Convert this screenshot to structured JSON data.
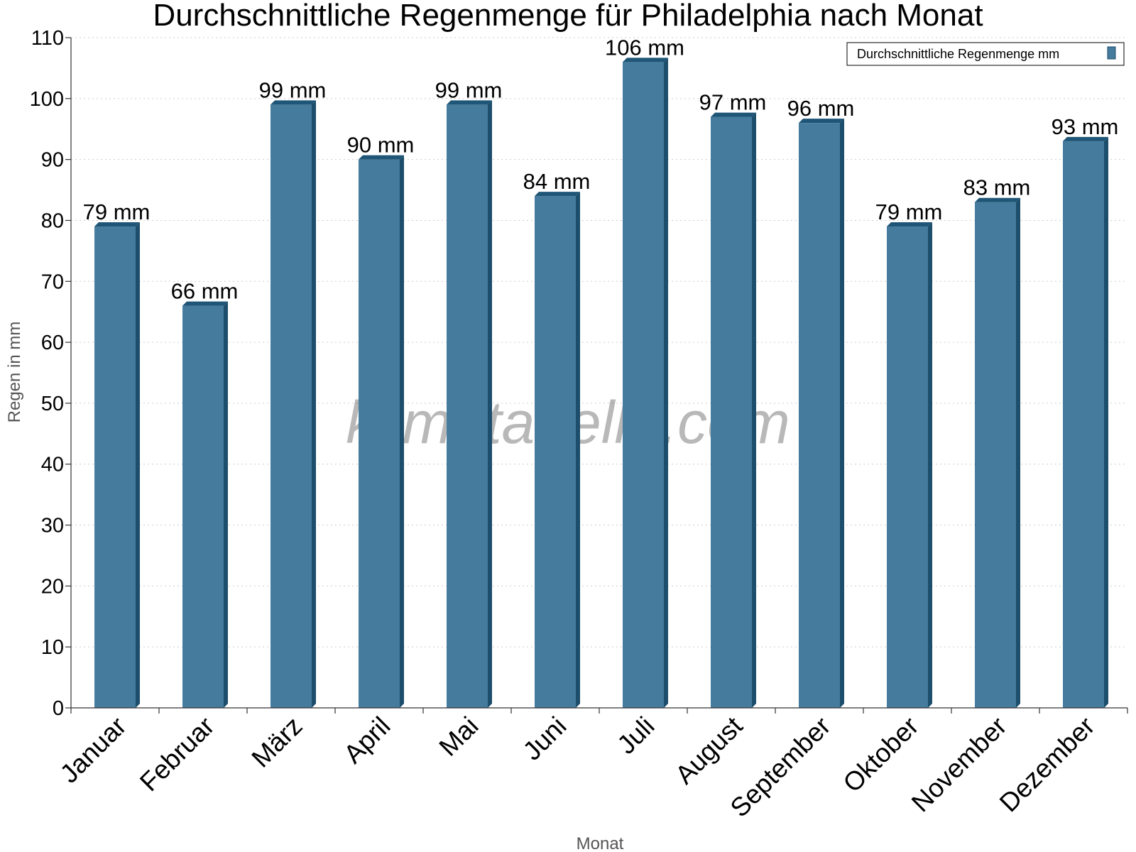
{
  "chart_data": {
    "type": "bar",
    "title": "Durchschnittliche Regenmenge für Philadelphia nach Monat",
    "xlabel": "Monat",
    "ylabel": "Regen in mm",
    "ylim": [
      0,
      110
    ],
    "ytick_step": 10,
    "grid": true,
    "legend_position": "top-right",
    "categories": [
      "Januar",
      "Februar",
      "März",
      "April",
      "Mai",
      "Juni",
      "Juli",
      "August",
      "September",
      "Oktober",
      "November",
      "Dezember"
    ],
    "series": [
      {
        "name": "Durchschnittliche Regenmenge mm",
        "values": [
          79,
          66,
          99,
          90,
          99,
          84,
          106,
          97,
          96,
          79,
          83,
          93
        ],
        "value_labels": [
          "79 mm",
          "66 mm",
          "99 mm",
          "90 mm",
          "99 mm",
          "84 mm",
          "106 mm",
          "97 mm",
          "96 mm",
          "79 mm",
          "83 mm",
          "93 mm"
        ]
      }
    ],
    "colors": {
      "bar_front": "#457b9d",
      "bar_side": "#1d4e6b",
      "bar_top": "#1f5576"
    }
  },
  "watermark": "klimatabelle.com"
}
